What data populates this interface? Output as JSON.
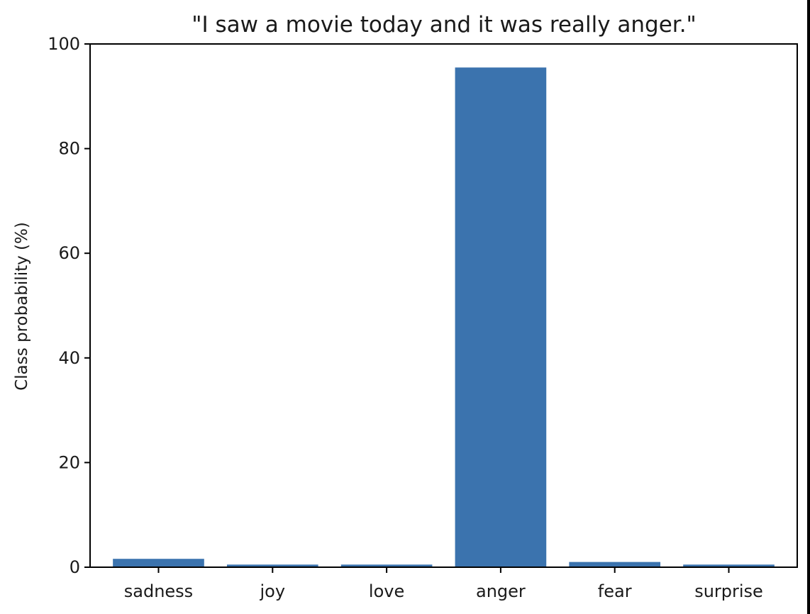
{
  "chart_data": {
    "type": "bar",
    "title": "\"I saw a movie today and it was really anger.\"",
    "xlabel": "",
    "ylabel": "Class probability (%)",
    "categories": [
      "sadness",
      "joy",
      "love",
      "anger",
      "fear",
      "surprise"
    ],
    "values": [
      1.6,
      0.5,
      0.5,
      95.5,
      1.0,
      0.5
    ],
    "ylim": [
      0,
      100
    ],
    "yticks": [
      0,
      20,
      40,
      60,
      80,
      100
    ],
    "grid": false,
    "bar_color": "#3b73ae"
  }
}
